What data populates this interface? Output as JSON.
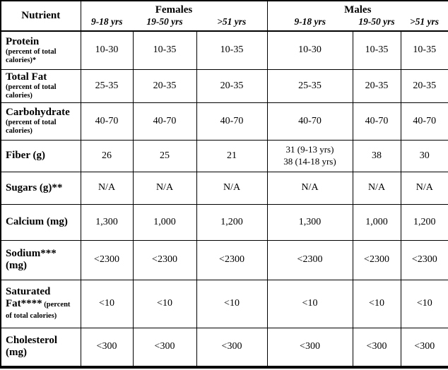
{
  "page": {
    "background_color": "#ffffff",
    "text_color": "#000000",
    "border_color": "#000000"
  },
  "table": {
    "header": {
      "nutrient": "Nutrient",
      "groups": [
        {
          "label": "Females",
          "ages": [
            "9-18 yrs",
            "19-50 yrs",
            ">51 yrs"
          ]
        },
        {
          "label": "Males",
          "ages": [
            "9-18 yrs",
            "19-50 yrs",
            ">51 yrs"
          ]
        }
      ]
    },
    "rows": [
      {
        "label": "Protein",
        "note": "(percent of total calories)*",
        "note_style": "block",
        "values": [
          "10-30",
          "10-35",
          "10-35",
          "10-30",
          "10-35",
          "10-35"
        ]
      },
      {
        "label": "Total Fat",
        "note": "(percent of total calories)",
        "note_style": "block",
        "values": [
          "25-35",
          "20-35",
          "20-35",
          "25-35",
          "20-35",
          "20-35"
        ]
      },
      {
        "label": "Carbohydrate",
        "note": "(percent of total calories)",
        "note_style": "block",
        "values": [
          "40-70",
          "40-70",
          "40-70",
          "40-70",
          "40-70",
          "40-70"
        ]
      },
      {
        "label": "Fiber (g)",
        "note": "",
        "note_style": "block",
        "values": [
          "26",
          "25",
          "21",
          "31 (9-13 yrs)\n38 (14-18 yrs)",
          "38",
          "30"
        ]
      },
      {
        "label": "Sugars (g)**",
        "note": "",
        "note_style": "block",
        "values": [
          "N/A",
          "N/A",
          "N/A",
          "N/A",
          "N/A",
          "N/A"
        ]
      },
      {
        "label": "Calcium (mg)",
        "note": "",
        "note_style": "block",
        "values": [
          "1,300",
          "1,000",
          "1,200",
          "1,300",
          "1,000",
          "1,200"
        ]
      },
      {
        "label": "Sodium***\n(mg)",
        "note": "",
        "note_style": "block",
        "values": [
          "<2300",
          "<2300",
          "<2300",
          "<2300",
          "<2300",
          "<2300"
        ]
      },
      {
        "label": "Saturated Fat****",
        "note": "(percent of total calories)",
        "note_style": "inline",
        "values": [
          "<10",
          "<10",
          "<10",
          "<10",
          "<10",
          "<10"
        ]
      },
      {
        "label": "Cholesterol\n(mg)",
        "note": "",
        "note_style": "block",
        "values": [
          "<300",
          "<300",
          "<300",
          "<300",
          "<300",
          "<300"
        ]
      }
    ]
  }
}
